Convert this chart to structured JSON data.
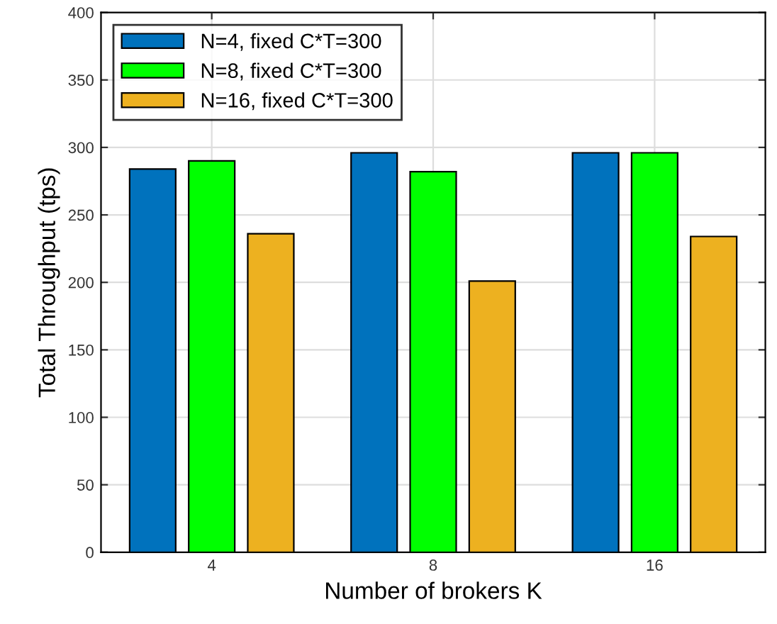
{
  "chart_data": {
    "type": "bar",
    "xlabel": "Number of brokers K",
    "ylabel": "Total Throughput (tps)",
    "categories": [
      "4",
      "8",
      "16"
    ],
    "series": [
      {
        "name": "N=4, fixed C*T=300",
        "color": "#0072bd",
        "values": [
          284,
          296,
          296
        ]
      },
      {
        "name": "N=8, fixed C*T=300",
        "color": "#00ff00",
        "values": [
          290,
          282,
          296
        ]
      },
      {
        "name": "N=16, fixed C*T=300",
        "color": "#edb120",
        "values": [
          236,
          201,
          234
        ]
      }
    ],
    "ylim": [
      0,
      400
    ],
    "yticks": [
      0,
      50,
      100,
      150,
      200,
      250,
      300,
      350,
      400
    ],
    "grid": true,
    "legend": "top left"
  }
}
